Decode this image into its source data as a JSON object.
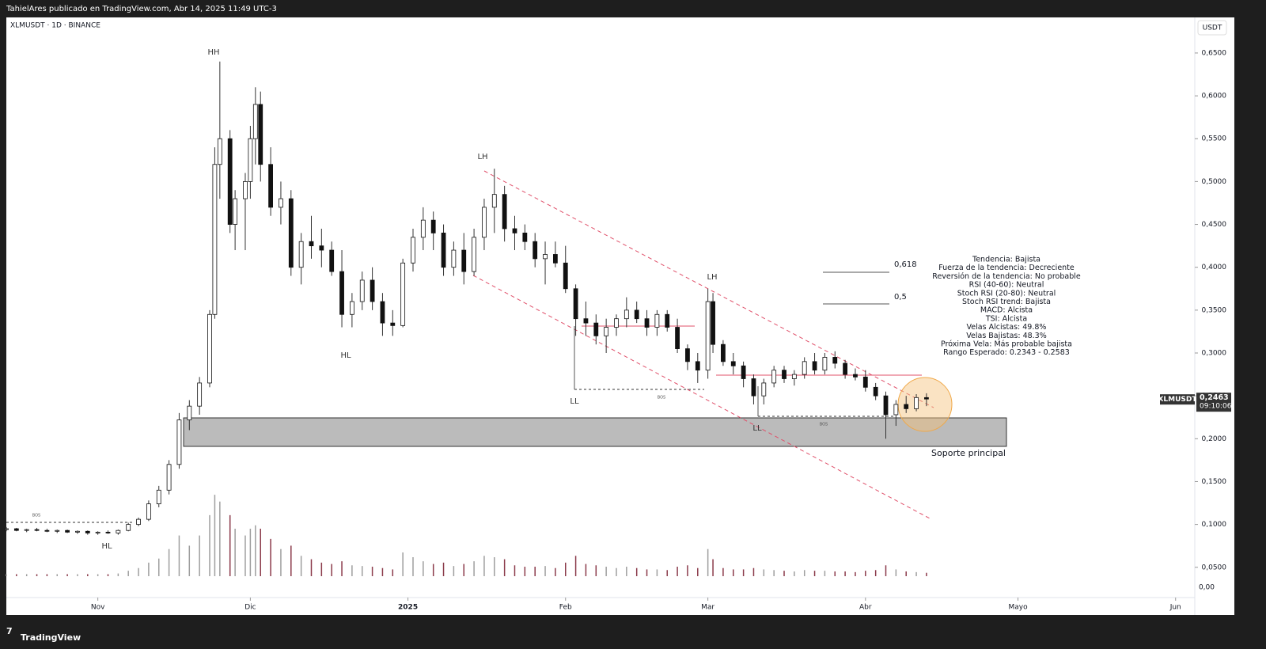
{
  "header": "TahielAres publicado en TradingView.com, Abr 14, 2025 11:49 UTC-3",
  "footer": "TradingView",
  "chart_data": {
    "type": "candlestick",
    "title": "XLMUSDT · 1D · BINANCE",
    "currency": "USDT",
    "x": [
      -18,
      -16,
      -14,
      -12,
      -10,
      -8,
      -6,
      -4,
      -2,
      0,
      2,
      4,
      6,
      8,
      10,
      12,
      14,
      16,
      18,
      20,
      22,
      23,
      24,
      26,
      27,
      29,
      30,
      31,
      32,
      34,
      36,
      38,
      40,
      42,
      44,
      46,
      48,
      50,
      52,
      54,
      56,
      58,
      60,
      62,
      64,
      66,
      68,
      70,
      72,
      74,
      76,
      78,
      80,
      82,
      84,
      86,
      88,
      90,
      92,
      94,
      96,
      98,
      100,
      102,
      104,
      106,
      108,
      110,
      112,
      114,
      116,
      118,
      120,
      121,
      123,
      125,
      127,
      129,
      131,
      133,
      135,
      137,
      139,
      141,
      143,
      145,
      147,
      149,
      151,
      153,
      155,
      157,
      159,
      161,
      163
    ],
    "ohlc": [
      [
        0.094,
        0.097,
        0.092,
        0.095
      ],
      [
        0.095,
        0.096,
        0.092,
        0.093
      ],
      [
        0.093,
        0.095,
        0.091,
        0.094
      ],
      [
        0.094,
        0.096,
        0.092,
        0.093
      ],
      [
        0.093,
        0.095,
        0.091,
        0.092
      ],
      [
        0.092,
        0.094,
        0.09,
        0.093
      ],
      [
        0.093,
        0.094,
        0.09,
        0.091
      ],
      [
        0.091,
        0.093,
        0.089,
        0.092
      ],
      [
        0.092,
        0.093,
        0.088,
        0.09
      ],
      [
        0.09,
        0.092,
        0.088,
        0.091
      ],
      [
        0.091,
        0.093,
        0.089,
        0.09
      ],
      [
        0.09,
        0.094,
        0.088,
        0.093
      ],
      [
        0.093,
        0.102,
        0.092,
        0.1
      ],
      [
        0.1,
        0.108,
        0.098,
        0.106
      ],
      [
        0.106,
        0.128,
        0.104,
        0.124
      ],
      [
        0.124,
        0.145,
        0.12,
        0.14
      ],
      [
        0.14,
        0.175,
        0.135,
        0.17
      ],
      [
        0.17,
        0.23,
        0.165,
        0.222
      ],
      [
        0.222,
        0.245,
        0.21,
        0.238
      ],
      [
        0.238,
        0.272,
        0.228,
        0.265
      ],
      [
        0.265,
        0.35,
        0.26,
        0.345
      ],
      [
        0.345,
        0.54,
        0.34,
        0.52
      ],
      [
        0.52,
        0.64,
        0.48,
        0.55
      ],
      [
        0.55,
        0.56,
        0.44,
        0.45
      ],
      [
        0.45,
        0.49,
        0.42,
        0.48
      ],
      [
        0.48,
        0.51,
        0.42,
        0.5
      ],
      [
        0.5,
        0.565,
        0.48,
        0.55
      ],
      [
        0.55,
        0.61,
        0.52,
        0.59
      ],
      [
        0.59,
        0.605,
        0.5,
        0.52
      ],
      [
        0.52,
        0.54,
        0.46,
        0.47
      ],
      [
        0.47,
        0.5,
        0.45,
        0.48
      ],
      [
        0.48,
        0.49,
        0.39,
        0.4
      ],
      [
        0.4,
        0.44,
        0.38,
        0.43
      ],
      [
        0.43,
        0.46,
        0.41,
        0.425
      ],
      [
        0.425,
        0.445,
        0.4,
        0.42
      ],
      [
        0.42,
        0.43,
        0.39,
        0.395
      ],
      [
        0.395,
        0.42,
        0.33,
        0.345
      ],
      [
        0.345,
        0.37,
        0.33,
        0.36
      ],
      [
        0.36,
        0.395,
        0.35,
        0.385
      ],
      [
        0.385,
        0.4,
        0.35,
        0.36
      ],
      [
        0.36,
        0.37,
        0.32,
        0.335
      ],
      [
        0.335,
        0.35,
        0.32,
        0.332
      ],
      [
        0.332,
        0.41,
        0.33,
        0.405
      ],
      [
        0.405,
        0.445,
        0.395,
        0.435
      ],
      [
        0.435,
        0.47,
        0.42,
        0.455
      ],
      [
        0.455,
        0.465,
        0.42,
        0.44
      ],
      [
        0.44,
        0.45,
        0.39,
        0.4
      ],
      [
        0.4,
        0.43,
        0.39,
        0.42
      ],
      [
        0.42,
        0.44,
        0.38,
        0.395
      ],
      [
        0.395,
        0.445,
        0.39,
        0.435
      ],
      [
        0.435,
        0.48,
        0.42,
        0.47
      ],
      [
        0.47,
        0.515,
        0.44,
        0.485
      ],
      [
        0.485,
        0.495,
        0.43,
        0.445
      ],
      [
        0.445,
        0.46,
        0.42,
        0.44
      ],
      [
        0.44,
        0.45,
        0.42,
        0.43
      ],
      [
        0.43,
        0.44,
        0.4,
        0.41
      ],
      [
        0.41,
        0.43,
        0.38,
        0.415
      ],
      [
        0.415,
        0.43,
        0.4,
        0.405
      ],
      [
        0.405,
        0.425,
        0.37,
        0.375
      ],
      [
        0.375,
        0.38,
        0.32,
        0.34
      ],
      [
        0.34,
        0.36,
        0.32,
        0.335
      ],
      [
        0.335,
        0.345,
        0.31,
        0.32
      ],
      [
        0.32,
        0.34,
        0.3,
        0.33
      ],
      [
        0.33,
        0.345,
        0.32,
        0.34
      ],
      [
        0.34,
        0.365,
        0.33,
        0.35
      ],
      [
        0.35,
        0.36,
        0.335,
        0.34
      ],
      [
        0.34,
        0.35,
        0.32,
        0.33
      ],
      [
        0.33,
        0.35,
        0.32,
        0.345
      ],
      [
        0.345,
        0.35,
        0.325,
        0.33
      ],
      [
        0.33,
        0.34,
        0.3,
        0.305
      ],
      [
        0.305,
        0.31,
        0.28,
        0.29
      ],
      [
        0.29,
        0.3,
        0.265,
        0.28
      ],
      [
        0.28,
        0.375,
        0.27,
        0.36
      ],
      [
        0.36,
        0.37,
        0.3,
        0.31
      ],
      [
        0.31,
        0.315,
        0.285,
        0.29
      ],
      [
        0.29,
        0.3,
        0.275,
        0.285
      ],
      [
        0.285,
        0.29,
        0.26,
        0.27
      ],
      [
        0.27,
        0.275,
        0.24,
        0.25
      ],
      [
        0.25,
        0.27,
        0.24,
        0.265
      ],
      [
        0.265,
        0.285,
        0.26,
        0.28
      ],
      [
        0.28,
        0.285,
        0.265,
        0.27
      ],
      [
        0.27,
        0.28,
        0.262,
        0.275
      ],
      [
        0.275,
        0.295,
        0.27,
        0.29
      ],
      [
        0.29,
        0.3,
        0.275,
        0.28
      ],
      [
        0.28,
        0.3,
        0.275,
        0.295
      ],
      [
        0.295,
        0.302,
        0.282,
        0.288
      ],
      [
        0.288,
        0.292,
        0.27,
        0.275
      ],
      [
        0.275,
        0.282,
        0.268,
        0.272
      ],
      [
        0.272,
        0.28,
        0.255,
        0.26
      ],
      [
        0.26,
        0.265,
        0.245,
        0.25
      ],
      [
        0.25,
        0.255,
        0.2,
        0.228
      ],
      [
        0.228,
        0.245,
        0.215,
        0.24
      ],
      [
        0.24,
        0.25,
        0.23,
        0.235
      ],
      [
        0.235,
        0.252,
        0.232,
        0.248
      ],
      [
        0.248,
        0.253,
        0.238,
        0.2463
      ]
    ],
    "volume": [
      3,
      3,
      3,
      3,
      3,
      3,
      3,
      3,
      3,
      3,
      3,
      4,
      8,
      12,
      20,
      26,
      40,
      60,
      45,
      60,
      90,
      120,
      110,
      90,
      70,
      60,
      70,
      75,
      70,
      55,
      40,
      45,
      30,
      25,
      20,
      18,
      22,
      16,
      15,
      14,
      12,
      10,
      35,
      28,
      22,
      18,
      20,
      15,
      18,
      22,
      30,
      28,
      25,
      16,
      14,
      14,
      15,
      12,
      20,
      30,
      18,
      16,
      14,
      12,
      14,
      12,
      10,
      10,
      9,
      14,
      16,
      12,
      40,
      25,
      12,
      10,
      10,
      12,
      10,
      9,
      8,
      7,
      9,
      8,
      8,
      7,
      7,
      6,
      8,
      9,
      16,
      10,
      7,
      6,
      5
    ],
    "vlim": [
      0,
      140
    ],
    "xlim": [
      -18,
      215
    ],
    "xticks": [
      {
        "value": 0,
        "label": "Nov"
      },
      {
        "value": 30,
        "label": "Dic"
      },
      {
        "value": 61,
        "label": "2025"
      },
      {
        "value": 92,
        "label": "Feb"
      },
      {
        "value": 120,
        "label": "Mar"
      },
      {
        "value": 151,
        "label": "Abr"
      },
      {
        "value": 181,
        "label": "Mayo"
      },
      {
        "value": 212,
        "label": "Jun"
      }
    ],
    "ylim": [
      0.0147,
      0.6915
    ],
    "yticks": [
      {
        "value": 0.05,
        "label": "0,0500"
      },
      {
        "value": 0.1,
        "label": "0,1000"
      },
      {
        "value": 0.15,
        "label": "0,1500"
      },
      {
        "value": 0.2,
        "label": "0,2000"
      },
      {
        "value": 0.25,
        "label": "0,2500"
      },
      {
        "value": 0.3,
        "label": "0,3000"
      },
      {
        "value": 0.35,
        "label": "0,3500"
      },
      {
        "value": 0.4,
        "label": "0,4000"
      },
      {
        "value": 0.45,
        "label": "0,4500"
      },
      {
        "value": 0.5,
        "label": "0,5000"
      },
      {
        "value": 0.55,
        "label": "0,5500"
      },
      {
        "value": 0.6,
        "label": "0,6000"
      },
      {
        "value": 0.65,
        "label": "0,6500"
      }
    ],
    "vticks": [
      {
        "value": 0,
        "label": "0,00"
      }
    ],
    "price_tag": {
      "symbol": "XLMUSDT",
      "price": "0,2463",
      "countdown": "09:10:06"
    },
    "annotations": [
      "HH",
      "LH",
      "LH",
      "HL",
      "HL",
      "LL",
      "LL",
      "BOS",
      "BOS",
      "BOS"
    ],
    "support_label": "Soporte principal",
    "fib_levels": [
      "0,618",
      "0,5"
    ],
    "panel": [
      "Tendencia: Bajista",
      "Fuerza de la tendencia: Decreciente",
      "Reversión de la tendencia: No probable",
      "RSI (40-60): Neutral",
      "Stoch RSI (20-80): Neutral",
      "Stoch RSI trend: Bajista",
      "MACD: Alcista",
      "TSI: Alcista",
      "Velas Alcistas: 49.8%",
      "Velas Bajistas: 48.3%",
      "Próxima Vela: Más probable bajista",
      "Rango Esperado: 0.2343 - 0.2583"
    ]
  }
}
